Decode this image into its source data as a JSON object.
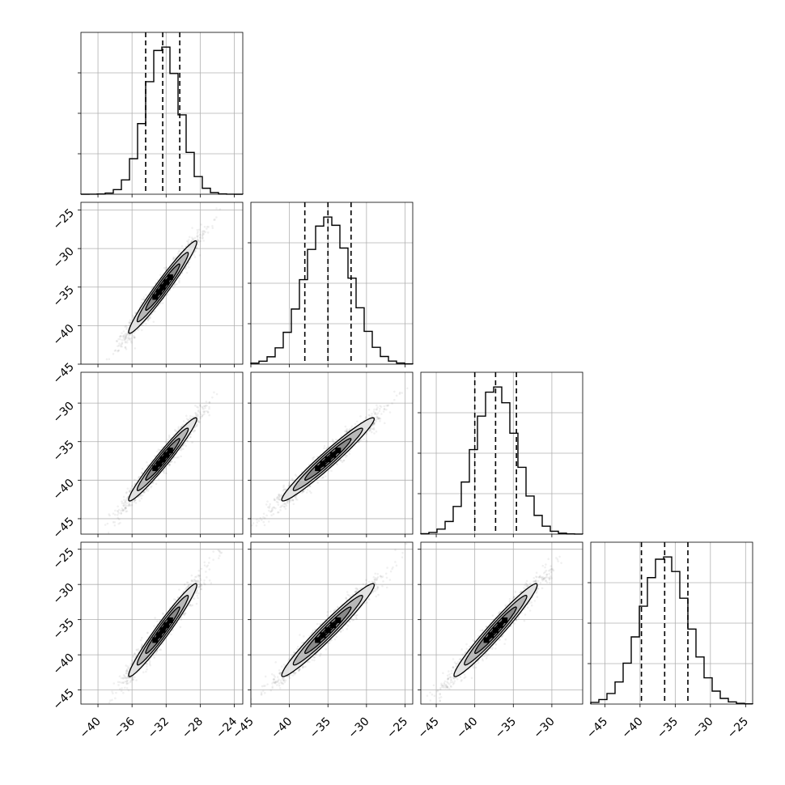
{
  "chart_data": {
    "type": "corner",
    "grid": true,
    "parameters": [
      {
        "mean": -32.4,
        "sigma": 2.0,
        "q16": -34.4,
        "q50": -32.4,
        "q84": -30.4,
        "range": [
          -42,
          -23
        ],
        "ticks": [
          -40,
          -36,
          -32,
          -28,
          -24
        ]
      },
      {
        "mean": -35.0,
        "sigma": 3.0,
        "q16": -38.0,
        "q50": -35.0,
        "q84": -32.0,
        "range": [
          -45,
          -24
        ],
        "ticks": [
          -45,
          -40,
          -35,
          -30,
          -25
        ]
      },
      {
        "mean": -37.3,
        "sigma": 2.7,
        "q16": -40.0,
        "q50": -37.3,
        "q84": -34.6,
        "range": [
          -47,
          -26
        ],
        "ticks": [
          -45,
          -40,
          -35,
          -30
        ]
      },
      {
        "mean": -36.5,
        "sigma": 3.3,
        "q16": -39.8,
        "q50": -36.5,
        "q84": -33.2,
        "range": [
          -47,
          -24
        ],
        "ticks": [
          -45,
          -40,
          -35,
          -30,
          -25
        ]
      }
    ],
    "correlation": 0.97,
    "histogram_bins": 20,
    "contour_levels_sigma": [
      0.5,
      1.0,
      1.5,
      2.0
    ],
    "contour_fills": [
      "#5a5a5a",
      "#8a8a8a",
      "#b8b8b8",
      "#e2e2e2"
    ]
  }
}
